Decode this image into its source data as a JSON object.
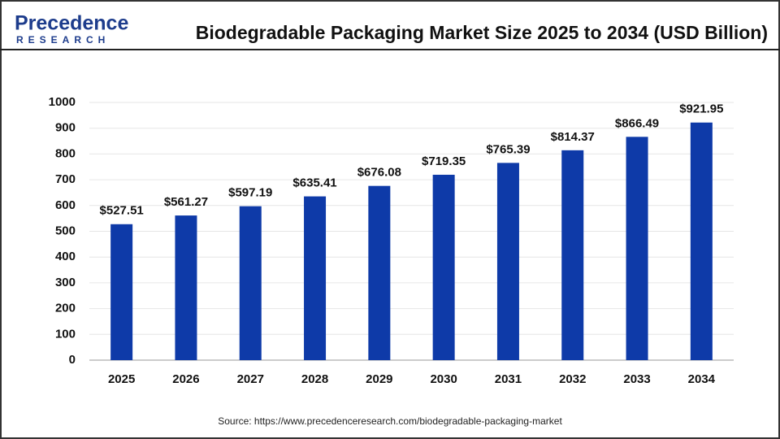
{
  "logo": {
    "name": "Precedence",
    "tagline": "RESEARCH"
  },
  "chart_data": {
    "type": "bar",
    "title": "Biodegradable Packaging Market Size 2025 to 2034 (USD Billion)",
    "categories": [
      "2025",
      "2026",
      "2027",
      "2028",
      "2029",
      "2030",
      "2031",
      "2032",
      "2033",
      "2034"
    ],
    "values": [
      527.51,
      561.27,
      597.19,
      635.41,
      676.08,
      719.35,
      765.39,
      814.37,
      866.49,
      921.95
    ],
    "value_labels": [
      "$527.51",
      "$561.27",
      "$597.19",
      "$635.41",
      "$676.08",
      "$719.35",
      "$765.39",
      "$814.37",
      "$866.49",
      "$921.95"
    ],
    "color": "#0e3aa8",
    "ylim": [
      0,
      1000
    ],
    "yticks": [
      0,
      100,
      200,
      300,
      400,
      500,
      600,
      700,
      800,
      900,
      1000
    ],
    "grid": true,
    "source": "Source: https://www.precedenceresearch.com/biodegradable-packaging-market"
  }
}
